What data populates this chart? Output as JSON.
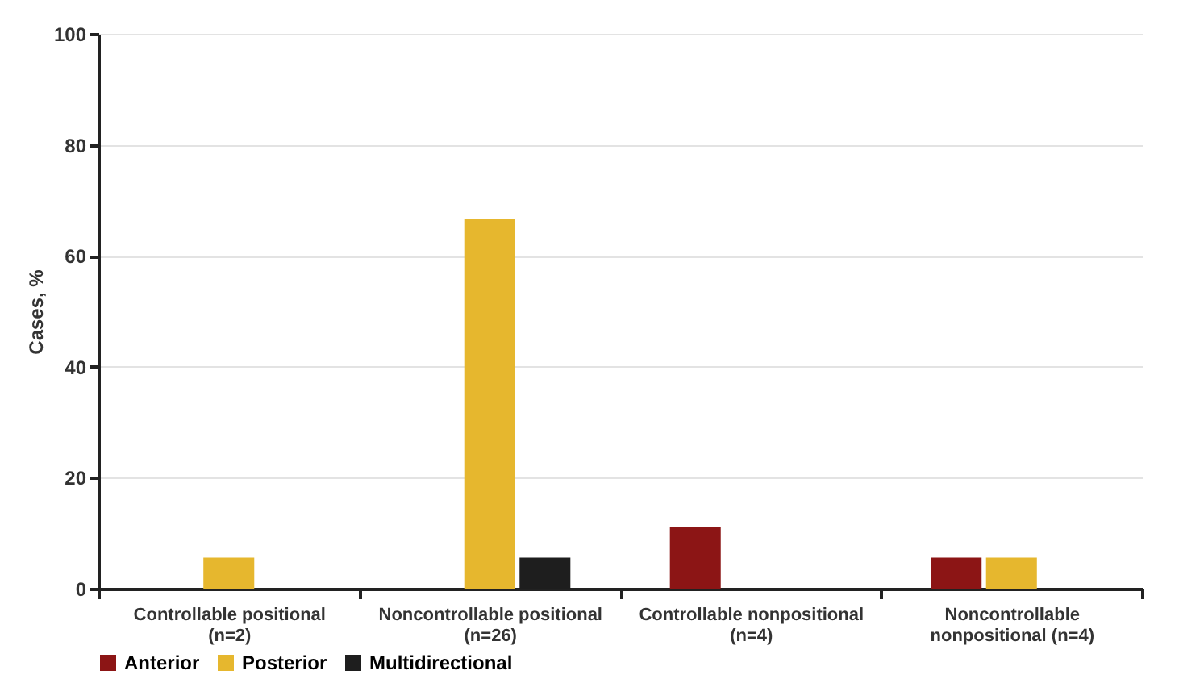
{
  "chart_data": {
    "type": "bar",
    "ylabel": "Cases, %",
    "categories": [
      "Controllable positional\n(n=2)",
      "Noncontrollable positional\n(n=26)",
      "Controllable nonpositional\n(n=4)",
      "Noncontrollable\nnonpositional (n=4)"
    ],
    "series": [
      {
        "name": "Anterior",
        "color": "#8c1515",
        "values": [
          0,
          0,
          11.1,
          5.6
        ]
      },
      {
        "name": "Posterior",
        "color": "#e6b72e",
        "values": [
          5.6,
          66.7,
          0,
          5.6
        ]
      },
      {
        "name": "Multidirectional",
        "color": "#1e1e1e",
        "values": [
          0,
          5.6,
          0,
          0
        ]
      }
    ],
    "ylim": [
      0,
      100
    ],
    "yticks": [
      0,
      20,
      40,
      60,
      80,
      100
    ],
    "grid": "y",
    "legend": "bottom"
  }
}
